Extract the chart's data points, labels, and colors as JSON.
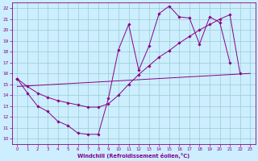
{
  "xlabel": "Windchill (Refroidissement éolien,°C)",
  "bg_color": "#cceeff",
  "grid_color": "#99cccc",
  "line_color": "#880088",
  "xlim_min": -0.5,
  "xlim_max": 23.5,
  "ylim_min": 9.5,
  "ylim_max": 22.5,
  "yticks": [
    10,
    11,
    12,
    13,
    14,
    15,
    16,
    17,
    18,
    19,
    20,
    21,
    22
  ],
  "xticks": [
    0,
    1,
    2,
    3,
    4,
    5,
    6,
    7,
    8,
    9,
    10,
    11,
    12,
    13,
    14,
    15,
    16,
    17,
    18,
    19,
    20,
    21,
    22,
    23
  ],
  "line1_x": [
    0,
    1,
    2,
    3,
    4,
    5,
    6,
    7,
    8,
    9,
    10,
    11,
    12,
    13,
    14,
    15,
    16,
    17,
    18,
    19,
    20,
    21
  ],
  "line1_y": [
    15.5,
    14.2,
    13.0,
    12.5,
    11.6,
    11.2,
    10.5,
    10.4,
    10.4,
    13.7,
    18.2,
    20.5,
    16.3,
    18.5,
    21.5,
    22.2,
    21.2,
    21.1,
    18.7,
    21.2,
    20.7,
    17.0
  ],
  "line2_x": [
    0,
    23
  ],
  "line2_y": [
    14.8,
    16.0
  ],
  "line3_x": [
    0,
    1,
    2,
    3,
    4,
    5,
    6,
    7,
    8,
    9,
    10,
    11,
    12,
    13,
    14,
    15,
    16,
    17,
    18,
    19,
    20,
    21,
    22
  ],
  "line3_y": [
    15.5,
    14.8,
    14.2,
    13.8,
    13.5,
    13.3,
    13.1,
    12.9,
    12.9,
    13.2,
    14.0,
    15.0,
    15.9,
    16.7,
    17.5,
    18.1,
    18.8,
    19.4,
    20.0,
    20.5,
    21.0,
    21.4,
    16.0
  ]
}
